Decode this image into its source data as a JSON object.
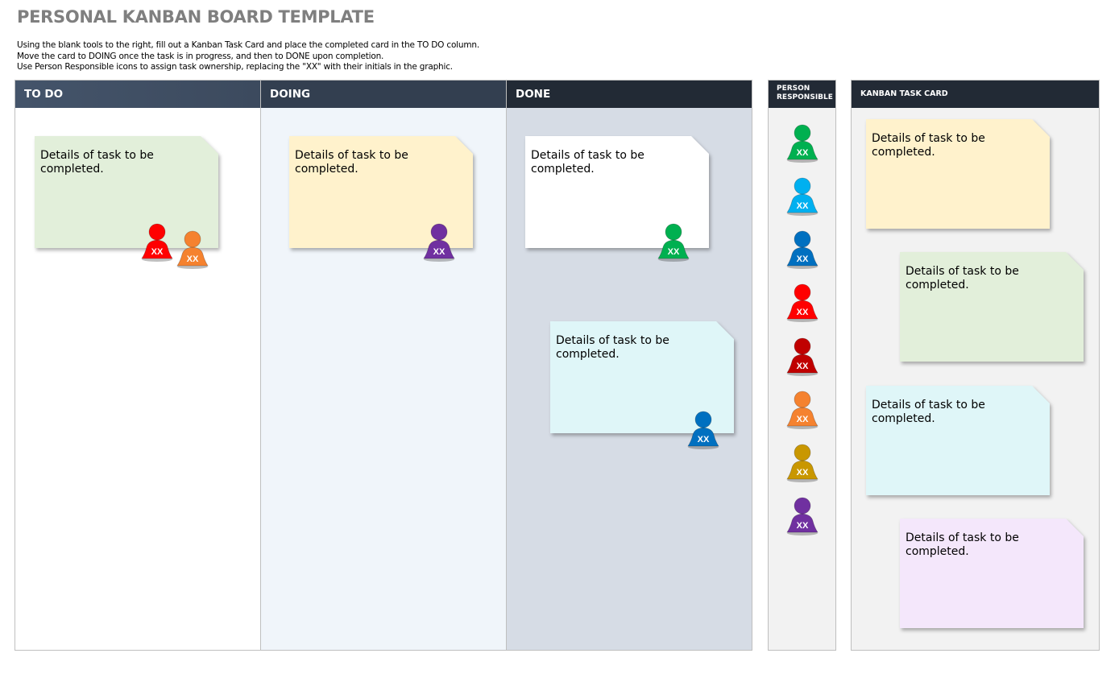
{
  "title": "PERSONAL KANBAN BOARD TEMPLATE",
  "instructions": [
    "Using the blank tools to the right, fill out a Kanban Task Card and place the completed card in the TO DO column.",
    "Move the card to DOING once the task is in progress, and then to DONE upon completion.",
    "Use Person Responsible icons to assign task ownership, replacing the \"XX\" with their initials in the graphic."
  ],
  "columns": [
    {
      "label": "TO DO",
      "header_color": "#44546a",
      "body_color": "#ffffff"
    },
    {
      "label": "DOING",
      "header_color": "#333f50",
      "body_color": "#f0f5fa"
    },
    {
      "label": "DONE",
      "header_color": "#222a35",
      "body_color": "#d6dce5"
    }
  ],
  "person_panel": {
    "label_line1": "PERSON",
    "label_line2": "RESPONSIBLE"
  },
  "task_card_panel": {
    "label": "KANBAN TASK CARD"
  },
  "card_text": "Details of task to be completed.",
  "person_initials": "XX",
  "colors": {
    "green": "#00b050",
    "lightblue": "#00b0f0",
    "blue": "#0070c0",
    "red": "#ff0000",
    "darkred": "#c00000",
    "orange": "#f5822f",
    "gold": "#c99700",
    "purple": "#7030a0",
    "card_green": "#e2efda",
    "card_yellow": "#fff2cc",
    "card_white": "#ffffff",
    "card_cyan": "#dff6f8",
    "card_lavender": "#f4e7fb"
  },
  "board_cards": [
    {
      "column": "TO DO",
      "color": "card_green",
      "persons": [
        "red",
        "orange"
      ]
    },
    {
      "column": "DOING",
      "color": "card_yellow",
      "persons": [
        "purple"
      ]
    },
    {
      "column": "DONE",
      "color": "card_white",
      "persons": [
        "green"
      ]
    },
    {
      "column": "DONE",
      "color": "card_cyan",
      "persons": [
        "blue"
      ]
    }
  ],
  "palette_persons": [
    "green",
    "lightblue",
    "blue",
    "red",
    "darkred",
    "orange",
    "gold",
    "purple"
  ],
  "palette_cards": [
    "card_yellow",
    "card_green",
    "card_cyan",
    "card_lavender"
  ]
}
